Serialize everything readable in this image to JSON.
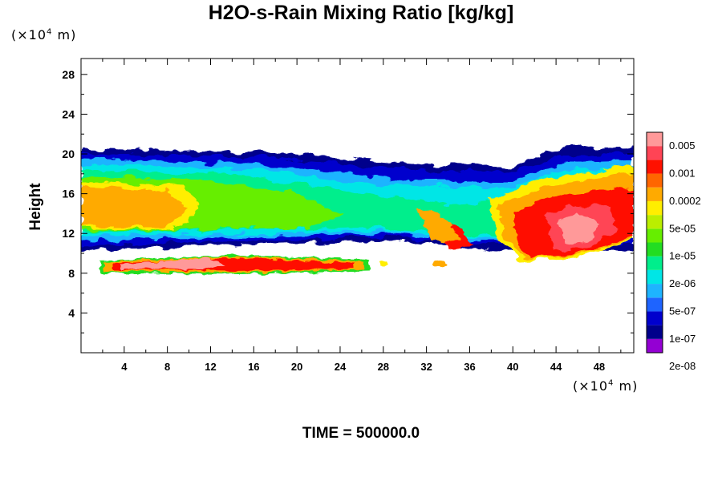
{
  "title": "H2O-s-Rain Mixing Ratio [kg/kg]",
  "y_unit": {
    "prefix": "(×10",
    "exp": "4",
    "suffix": " m)"
  },
  "x_unit": {
    "prefix": "(×10",
    "exp": "4",
    "suffix": " m)"
  },
  "time_label": "TIME = 500000.0",
  "colors": {
    "levels": [
      "#9400d3",
      "#00008b",
      "#0000cd",
      "#1e64ff",
      "#1eb4ff",
      "#00e6e6",
      "#00ee8c",
      "#22dd22",
      "#66ee00",
      "#bbee00",
      "#ffee00",
      "#ffaa00",
      "#ff6600",
      "#ff1100",
      "#ff4455",
      "#ff9999"
    ]
  },
  "chart_data": {
    "type": "heatmap",
    "title": "H2O-s-Rain Mixing Ratio [kg/kg]",
    "ylabel": "Height",
    "xlabel": "",
    "x_unit": "×10^4 m",
    "y_unit": "×10^4 m",
    "xlim": [
      0,
      51.2
    ],
    "ylim": [
      0,
      29.6
    ],
    "x_ticks": [
      "4",
      "8",
      "12",
      "16",
      "20",
      "24",
      "28",
      "32",
      "36",
      "40",
      "44",
      "48"
    ],
    "y_ticks": [
      "4",
      "8",
      "12",
      "16",
      "20",
      "24",
      "28"
    ],
    "colorbar_labels": [
      "0.005",
      "0.001",
      "0.0002",
      "5e-05",
      "1e-05",
      "2e-06",
      "5e-07",
      "1e-07",
      "2e-08"
    ],
    "layers": [
      {
        "name": "upper cloud band",
        "x_range": [
          0,
          51.2
        ],
        "y_range": [
          10.5,
          20.5
        ],
        "typical_value": "1e-05"
      },
      {
        "name": "upper band core (left)",
        "x_range": [
          0,
          11
        ],
        "y_range": [
          11,
          18
        ],
        "typical_value": "0.0002"
      },
      {
        "name": "upper band core (right)",
        "x_range": [
          39,
          51.2
        ],
        "y_range": [
          9,
          19
        ],
        "typical_value": "0.005"
      },
      {
        "name": "lower band",
        "x_range": [
          2,
          27
        ],
        "y_range": [
          8,
          10
        ],
        "typical_value": "0.001"
      }
    ]
  }
}
